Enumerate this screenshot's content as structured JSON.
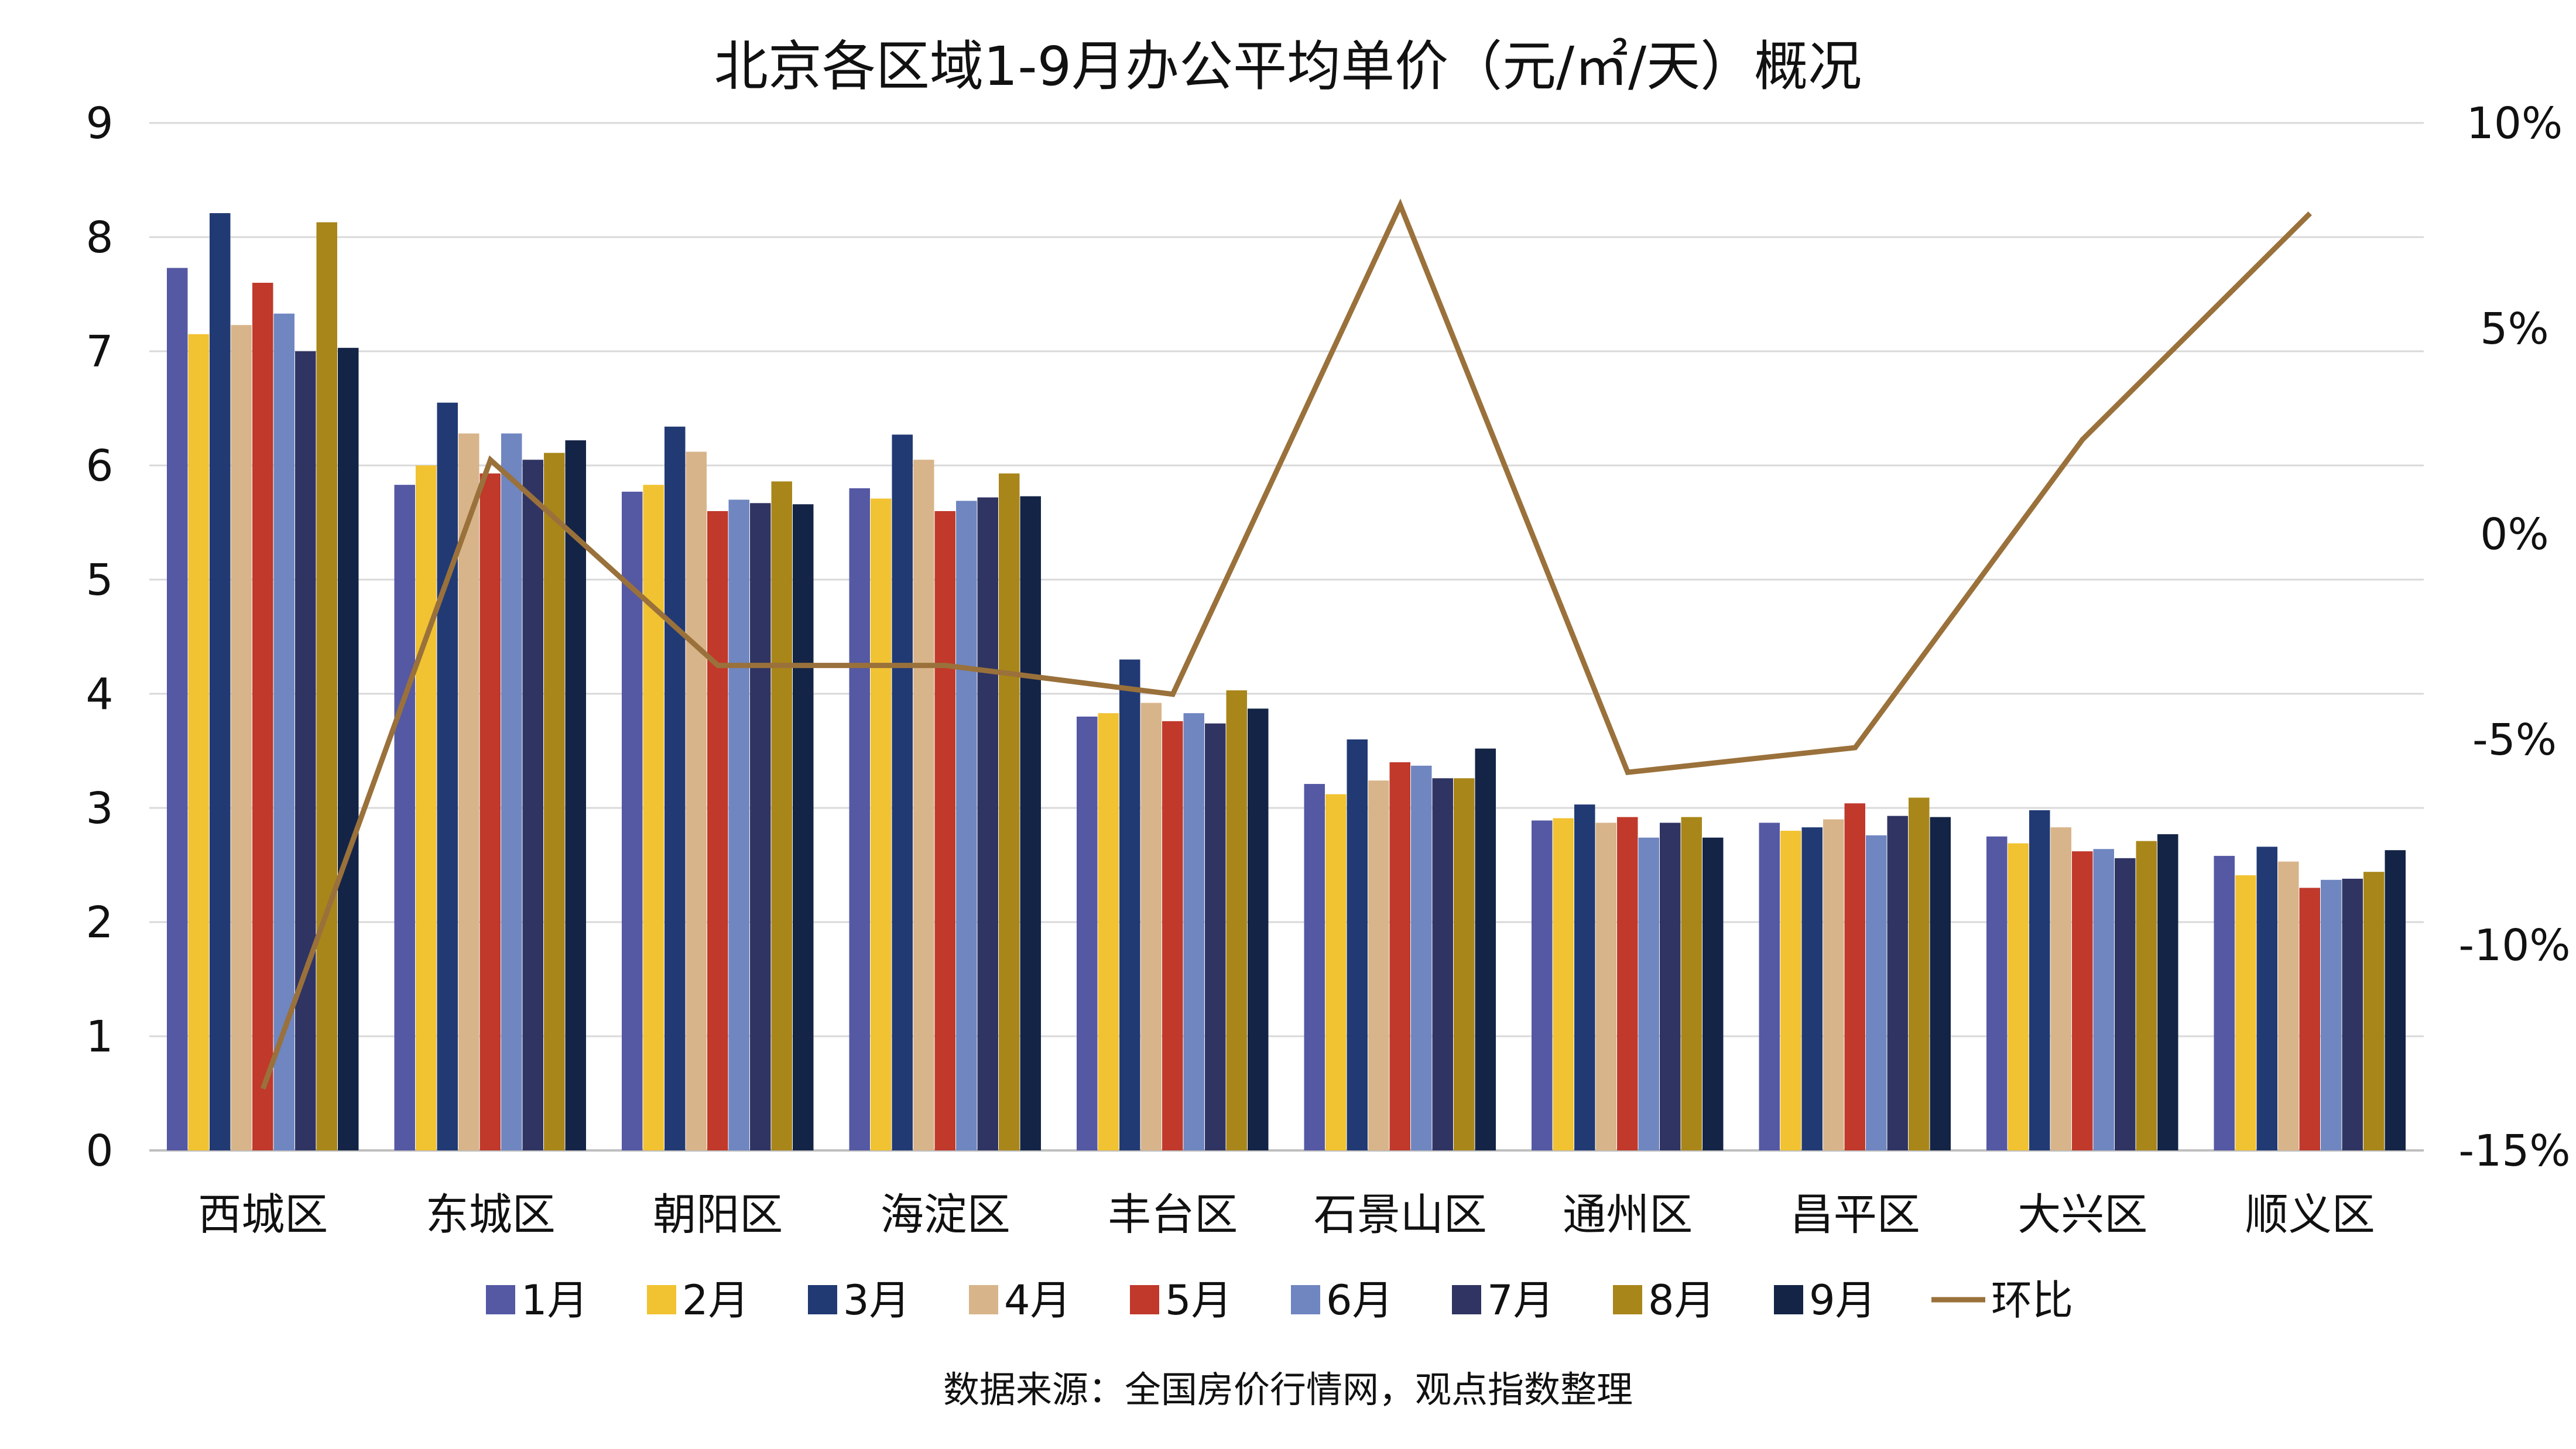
{
  "chart_data": {
    "type": "bar",
    "title": "北京各区域1-9月办公平均单价（元/㎡/天）概况",
    "categories": [
      "西城区",
      "东城区",
      "朝阳区",
      "海淀区",
      "丰台区",
      "石景山区",
      "通州区",
      "昌平区",
      "大兴区",
      "顺义区"
    ],
    "series": [
      {
        "name": "1月",
        "color": "#5558a3",
        "values": [
          7.73,
          5.83,
          5.77,
          5.8,
          3.8,
          3.21,
          2.89,
          2.87,
          2.75,
          2.58
        ]
      },
      {
        "name": "2月",
        "color": "#f1c232",
        "values": [
          7.15,
          6.0,
          5.83,
          5.71,
          3.83,
          3.12,
          2.91,
          2.8,
          2.69,
          2.41
        ]
      },
      {
        "name": "3月",
        "color": "#213a74",
        "values": [
          8.21,
          6.55,
          6.34,
          6.27,
          4.3,
          3.6,
          3.03,
          2.83,
          2.98,
          2.66
        ]
      },
      {
        "name": "4月",
        "color": "#d8b48a",
        "values": [
          7.23,
          6.28,
          6.12,
          6.05,
          3.92,
          3.24,
          2.87,
          2.9,
          2.83,
          2.53
        ]
      },
      {
        "name": "5月",
        "color": "#c0392b",
        "values": [
          7.6,
          5.93,
          5.6,
          5.6,
          3.76,
          3.4,
          2.92,
          3.04,
          2.62,
          2.3
        ]
      },
      {
        "name": "6月",
        "color": "#6f86c0",
        "values": [
          7.33,
          6.28,
          5.7,
          5.69,
          3.83,
          3.37,
          2.74,
          2.76,
          2.64,
          2.37
        ]
      },
      {
        "name": "7月",
        "color": "#303462",
        "values": [
          7.0,
          6.05,
          5.67,
          5.72,
          3.74,
          3.26,
          2.87,
          2.93,
          2.56,
          2.38
        ]
      },
      {
        "name": "8月",
        "color": "#a8861a",
        "values": [
          8.13,
          6.11,
          5.86,
          5.93,
          4.03,
          3.26,
          2.92,
          3.09,
          2.71,
          2.44
        ]
      },
      {
        "name": "9月",
        "color": "#142446",
        "values": [
          7.03,
          6.22,
          5.66,
          5.73,
          3.87,
          3.52,
          2.74,
          2.92,
          2.77,
          2.63
        ]
      }
    ],
    "line_series": {
      "name": "环比",
      "color": "#9a713b",
      "axis": "right",
      "values": [
        -13.5,
        1.8,
        -3.2,
        -3.2,
        -3.9,
        8.0,
        -5.8,
        -5.2,
        2.3,
        7.8
      ]
    },
    "y_left": {
      "min": 0,
      "max": 9,
      "ticks": [
        "0",
        "1",
        "2",
        "3",
        "4",
        "5",
        "6",
        "7",
        "8",
        "9"
      ]
    },
    "y_right": {
      "min": -15,
      "max": 10,
      "ticks": [
        "-15%",
        "-10%",
        "-5%",
        "0%",
        "5%",
        "10%"
      ]
    },
    "grid": true,
    "legend_position": "bottom",
    "source": "数据来源：全国房价行情网，观点指数整理"
  }
}
